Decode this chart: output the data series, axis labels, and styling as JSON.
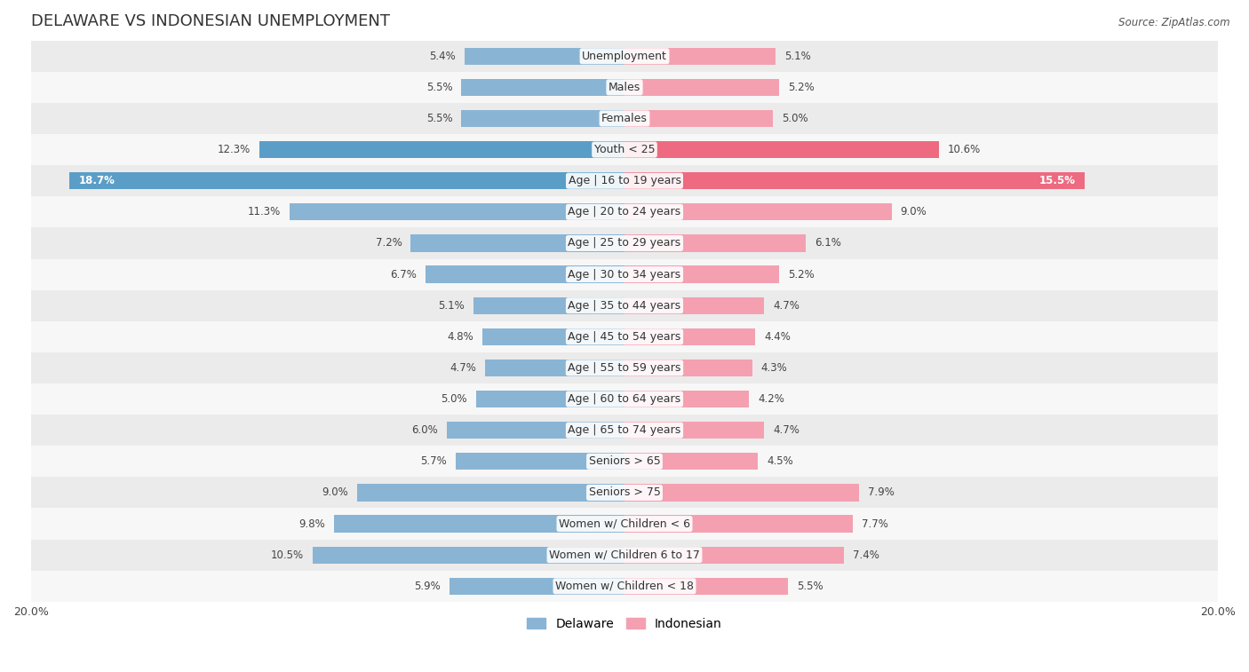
{
  "title": "DELAWARE VS INDONESIAN UNEMPLOYMENT",
  "source": "Source: ZipAtlas.com",
  "categories": [
    "Unemployment",
    "Males",
    "Females",
    "Youth < 25",
    "Age | 16 to 19 years",
    "Age | 20 to 24 years",
    "Age | 25 to 29 years",
    "Age | 30 to 34 years",
    "Age | 35 to 44 years",
    "Age | 45 to 54 years",
    "Age | 55 to 59 years",
    "Age | 60 to 64 years",
    "Age | 65 to 74 years",
    "Seniors > 65",
    "Seniors > 75",
    "Women w/ Children < 6",
    "Women w/ Children 6 to 17",
    "Women w/ Children < 18"
  ],
  "delaware": [
    5.4,
    5.5,
    5.5,
    12.3,
    18.7,
    11.3,
    7.2,
    6.7,
    5.1,
    4.8,
    4.7,
    5.0,
    6.0,
    5.7,
    9.0,
    9.8,
    10.5,
    5.9
  ],
  "indonesian": [
    5.1,
    5.2,
    5.0,
    10.6,
    15.5,
    9.0,
    6.1,
    5.2,
    4.7,
    4.4,
    4.3,
    4.2,
    4.7,
    4.5,
    7.9,
    7.7,
    7.4,
    5.5
  ],
  "delaware_color": "#8AB4D4",
  "indonesian_color": "#F4A0B0",
  "highlight_rows": [
    3,
    4
  ],
  "highlight_delaware_color": "#5A9EC8",
  "highlight_indonesian_color": "#EE6A80",
  "row_bg_even": "#EBEBEB",
  "row_bg_odd": "#F7F7F7",
  "xlim": 20.0,
  "bar_height": 0.55,
  "legend_delaware": "Delaware",
  "legend_indonesian": "Indonesian",
  "title_fontsize": 13,
  "label_fontsize": 9,
  "value_fontsize": 8.5,
  "axis_label_fontsize": 9
}
